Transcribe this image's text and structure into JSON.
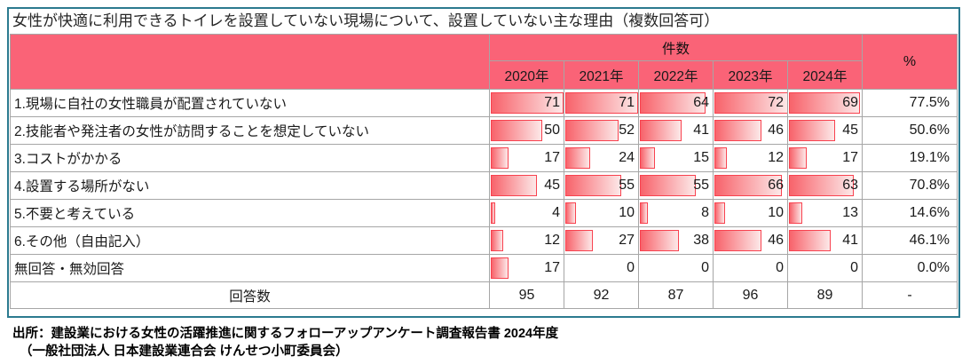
{
  "title": "女性が快適に利用できるトイレを設置していない現場について、設置していない主な理由（複数回答可）",
  "table": {
    "count_header": "件数",
    "percent_header": "%",
    "years": [
      "2020年",
      "2021年",
      "2022年",
      "2023年",
      "2024年"
    ],
    "bar_max": 72,
    "rows": [
      {
        "label": "1.現場に自社の女性職員が配置されていない",
        "values": [
          71,
          71,
          64,
          72,
          69
        ],
        "percent": "77.5%"
      },
      {
        "label": "2.技能者や発注者の女性が訪問することを想定していない",
        "values": [
          50,
          52,
          41,
          46,
          45
        ],
        "percent": "50.6%"
      },
      {
        "label": "3.コストがかかる",
        "values": [
          17,
          24,
          15,
          12,
          17
        ],
        "percent": "19.1%"
      },
      {
        "label": "4.設置する場所がない",
        "values": [
          45,
          55,
          55,
          66,
          63
        ],
        "percent": "70.8%"
      },
      {
        "label": "5.不要と考えている",
        "values": [
          4,
          10,
          8,
          10,
          13
        ],
        "percent": "14.6%"
      },
      {
        "label": "6.その他（自由記入）",
        "values": [
          12,
          27,
          38,
          46,
          41
        ],
        "percent": "46.1%"
      },
      {
        "label": "無回答・無効回答",
        "values": [
          17,
          0,
          0,
          0,
          0
        ],
        "percent": "0.0%"
      }
    ],
    "total_row": {
      "label": "回答数",
      "values": [
        95,
        92,
        87,
        96,
        89
      ],
      "percent": "-"
    }
  },
  "footer": {
    "line1": "出所：建設業における女性の活躍推進に関するフォローアップアンケート調査報告書 2024年度",
    "line2": "（一般社団法人 日本建設業連合会 けんせつ小町委員会）"
  },
  "colors": {
    "header_pink": "#fa6377",
    "bar_border_red": "#f8424f",
    "bar_gradient_start": "#f8636b",
    "bar_gradient_end": "#fce8e8",
    "grid_gray": "#a6a6a6",
    "outer_border_teal": "#2b7a8f"
  },
  "chart_data": {
    "type": "table",
    "title": "女性が快適に利用できるトイレを設置していない現場について、設置していない主な理由（複数回答可）",
    "column_group_label": "件数",
    "categories": [
      "2020年",
      "2021年",
      "2022年",
      "2023年",
      "2024年"
    ],
    "series": [
      {
        "name": "1.現場に自社の女性職員が配置されていない",
        "values": [
          71,
          71,
          64,
          72,
          69
        ],
        "percent_2024": 77.5
      },
      {
        "name": "2.技能者や発注者の女性が訪問することを想定していない",
        "values": [
          50,
          52,
          41,
          46,
          45
        ],
        "percent_2024": 50.6
      },
      {
        "name": "3.コストがかかる",
        "values": [
          17,
          24,
          15,
          12,
          17
        ],
        "percent_2024": 19.1
      },
      {
        "name": "4.設置する場所がない",
        "values": [
          45,
          55,
          55,
          66,
          63
        ],
        "percent_2024": 70.8
      },
      {
        "name": "5.不要と考えている",
        "values": [
          4,
          10,
          8,
          10,
          13
        ],
        "percent_2024": 14.6
      },
      {
        "name": "6.その他（自由記入）",
        "values": [
          12,
          27,
          38,
          46,
          41
        ],
        "percent_2024": 46.1
      },
      {
        "name": "無回答・無効回答",
        "values": [
          17,
          0,
          0,
          0,
          0
        ],
        "percent_2024": 0.0
      }
    ],
    "totals": {
      "name": "回答数",
      "values": [
        95,
        92,
        87,
        96,
        89
      ]
    },
    "bar_style": "in-cell gradient data bars, scale 0 to 72",
    "source": "出所：建設業における女性の活躍推進に関するフォローアップアンケート調査報告書 2024年度（一般社団法人 日本建設業連合会 けんせつ小町委員会）"
  }
}
